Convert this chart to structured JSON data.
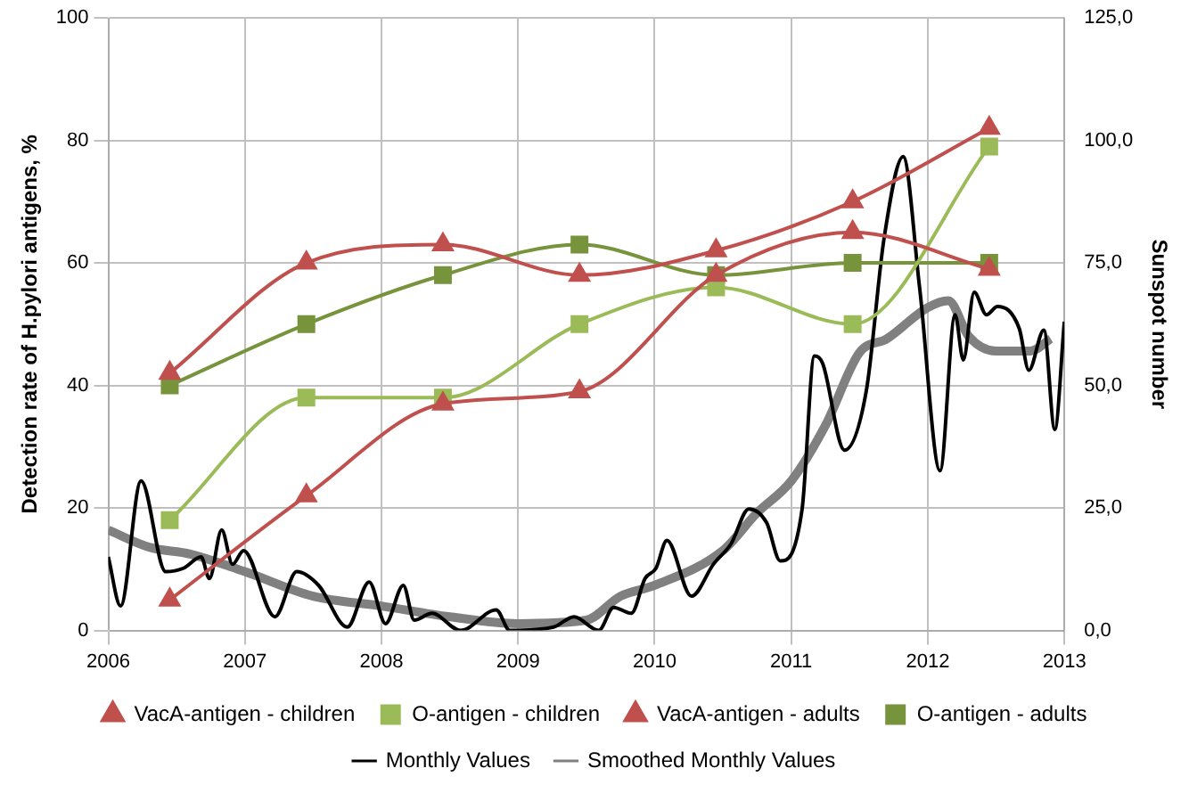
{
  "chart_data": {
    "type": "line",
    "ylabel": "Detection rate of H.pylori antigens, %",
    "y2label": "Sunspot number",
    "xlim": [
      2006,
      2013
    ],
    "xticks": [
      2006,
      2007,
      2008,
      2009,
      2010,
      2011,
      2012,
      2013
    ],
    "ylim": [
      0,
      100
    ],
    "yticks": [
      0,
      20,
      40,
      60,
      80,
      100
    ],
    "y2lim": [
      0,
      125
    ],
    "y2ticks": [
      {
        "value": 0,
        "label": "0,0"
      },
      {
        "value": 25,
        "label": "25,0"
      },
      {
        "value": 50,
        "label": "50,0"
      },
      {
        "value": 75,
        "label": "75,0"
      },
      {
        "value": 100,
        "label": "100,0"
      },
      {
        "value": 125,
        "label": "125,0"
      }
    ],
    "grid": true,
    "legend": "bottom",
    "series": [
      {
        "name": "O-antigen - adults",
        "color": "#77933c",
        "marker": "square",
        "x": [
          2006.45,
          2007.45,
          2008.45,
          2009.45,
          2010.45,
          2011.45,
          2012.45
        ],
        "values": [
          40,
          50,
          58,
          63,
          58,
          60,
          60
        ]
      },
      {
        "name": "VacA-antigen - adults",
        "color": "#c0504d",
        "marker": "triangle",
        "x": [
          2006.45,
          2007.45,
          2008.45,
          2009.45,
          2010.45,
          2011.45,
          2012.45
        ],
        "values": [
          42,
          60,
          63,
          58,
          62,
          70,
          82
        ]
      },
      {
        "name": "O-antigen - children",
        "color": "#9bbb59",
        "marker": "square",
        "x": [
          2006.45,
          2007.45,
          2008.45,
          2009.45,
          2010.45,
          2011.45,
          2012.45
        ],
        "values": [
          18,
          38,
          38,
          50,
          56,
          50,
          79
        ]
      },
      {
        "name": "VacA-antigen - children",
        "color": "#c0504d",
        "marker": "triangle",
        "x": [
          2006.45,
          2007.45,
          2008.45,
          2009.45,
          2010.45,
          2011.45,
          2012.45
        ],
        "values": [
          5,
          22,
          37,
          39,
          58,
          65,
          59
        ]
      },
      {
        "name": "Smoothed Monthly Values",
        "color": "#808080",
        "axis": "y2",
        "marker": "none",
        "x": [
          2006.0,
          2006.3,
          2006.6,
          2007.0,
          2007.5,
          2008.0,
          2008.5,
          2009.0,
          2009.5,
          2009.75,
          2010.0,
          2010.5,
          2010.75,
          2011.0,
          2011.25,
          2011.5,
          2011.7,
          2012.0,
          2012.15,
          2012.3,
          2012.5,
          2012.75,
          2012.9
        ],
        "values": [
          20.5,
          17,
          15.6,
          12,
          7,
          5,
          2.8,
          1.4,
          2.1,
          7,
          9.2,
          16.3,
          24,
          30.5,
          41.8,
          56.7,
          59.5,
          65.9,
          67.3,
          60,
          57,
          57,
          59.5
        ]
      },
      {
        "name": "Monthly Values",
        "color": "#000000",
        "axis": "y2",
        "marker": "none",
        "x": [
          2006.0,
          2006.09,
          2006.24,
          2006.42,
          2006.55,
          2006.68,
          2006.74,
          2006.83,
          2006.91,
          2006.99,
          2007.22,
          2007.38,
          2007.54,
          2007.75,
          2007.91,
          2008.03,
          2008.16,
          2008.24,
          2008.37,
          2008.58,
          2008.84,
          2008.94,
          2009.26,
          2009.41,
          2009.59,
          2009.7,
          2009.83,
          2009.93,
          2010.01,
          2010.09,
          2010.27,
          2010.43,
          2010.56,
          2010.69,
          2010.82,
          2010.92,
          2011.08,
          2011.17,
          2011.23,
          2011.39,
          2011.55,
          2011.68,
          2011.82,
          2011.94,
          2012.09,
          2012.2,
          2012.26,
          2012.34,
          2012.43,
          2012.51,
          2012.67,
          2012.74,
          2012.85,
          2012.93,
          2013.0
        ],
        "values": [
          15,
          5,
          30.5,
          12,
          12.7,
          15,
          10.6,
          20.5,
          13.5,
          16.3,
          2.8,
          12,
          9.2,
          0.7,
          9.9,
          1.4,
          9.2,
          2.1,
          3.5,
          0,
          4.2,
          0,
          0.7,
          2.8,
          0,
          4.7,
          3.5,
          10.6,
          12.7,
          18.4,
          7,
          13.5,
          17.7,
          24.8,
          22,
          14.2,
          24.8,
          56,
          54.5,
          36.8,
          48.9,
          80,
          96.7,
          70,
          32.6,
          64.4,
          55.2,
          69,
          64.4,
          66.1,
          61.6,
          53.1,
          61.3,
          41,
          63
        ]
      }
    ]
  }
}
